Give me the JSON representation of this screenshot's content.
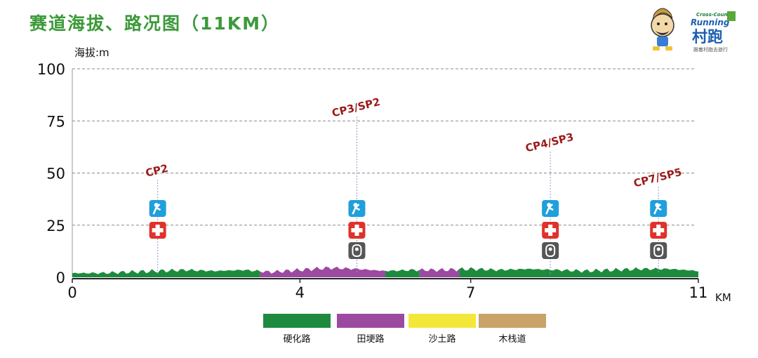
{
  "title": "赛道海拔、路况图（11KM）",
  "logo": {
    "top_line": "Cross-Country",
    "mid_line": "Running",
    "cn": "村跑",
    "tag": "跟着村跑去旅行"
  },
  "chart_data": {
    "type": "area",
    "ylabel": "海拔:m",
    "xlabel": "KM",
    "ylim": [
      0,
      100
    ],
    "xlim": [
      0,
      11
    ],
    "yticks": [
      0,
      25,
      50,
      75,
      100
    ],
    "xticks": [
      0,
      4,
      7,
      11
    ],
    "grid": true,
    "profile_km": [
      0,
      0.5,
      1,
      1.5,
      2,
      2.5,
      3,
      3.5,
      4,
      4.5,
      5,
      5.5,
      6,
      6.5,
      7,
      7.5,
      8,
      8.5,
      9,
      9.5,
      10,
      10.5,
      11
    ],
    "profile_m": [
      2,
      2,
      2.5,
      3,
      3.5,
      3,
      3.5,
      2.5,
      3.5,
      4.5,
      4,
      3,
      3.5,
      3.5,
      4,
      3.5,
      4,
      3.5,
      3,
      3.5,
      4,
      4,
      3
    ],
    "surface_segments": [
      {
        "type": "硬化路",
        "from": 0,
        "to": 3.3
      },
      {
        "type": "田埂路",
        "from": 3.3,
        "to": 5.5
      },
      {
        "type": "硬化路",
        "from": 5.5,
        "to": 6.1
      },
      {
        "type": "田埂路",
        "from": 6.1,
        "to": 6.8
      },
      {
        "type": "硬化路",
        "from": 6.8,
        "to": 11
      }
    ],
    "checkpoints": [
      {
        "label": "CP2",
        "km": 1.5,
        "icons": [
          "water-icon",
          "medical-icon"
        ]
      },
      {
        "label": "CP3/SP2",
        "km": 5.0,
        "icons": [
          "water-icon",
          "medical-icon",
          "toilet-icon"
        ]
      },
      {
        "label": "CP4/SP3",
        "km": 8.4,
        "icons": [
          "water-icon",
          "medical-icon",
          "toilet-icon"
        ]
      },
      {
        "label": "CP7/SP5",
        "km": 10.3,
        "icons": [
          "water-icon",
          "medical-icon",
          "toilet-icon"
        ]
      }
    ],
    "legend": [
      {
        "label": "硬化路",
        "color": "#1e8a3e"
      },
      {
        "label": "田埂路",
        "color": "#9b4aa0"
      },
      {
        "label": "沙土路",
        "color": "#f3e83a"
      },
      {
        "label": "木栈道",
        "color": "#c9a268"
      }
    ],
    "colors": {
      "checkpoint_label": "#9a1b1b",
      "water": "#1f9fdc",
      "medical": "#e0322a",
      "toilet": "#555555",
      "grid": "#888888"
    }
  }
}
